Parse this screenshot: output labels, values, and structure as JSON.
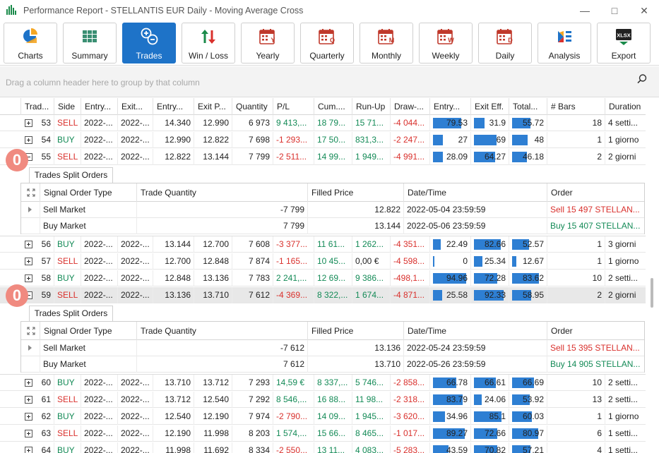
{
  "window": {
    "title": "Performance Report - STELLANTIS EUR Daily - Moving Average Cross"
  },
  "toolbar": [
    {
      "label": "Charts",
      "icon": "charts-icon"
    },
    {
      "label": "Summary",
      "icon": "summary-icon"
    },
    {
      "label": "Trades",
      "icon": "trades-icon",
      "active": true
    },
    {
      "label": "Win / Loss",
      "icon": "win-loss-icon"
    },
    {
      "label": "Yearly",
      "icon": "calendar-y-icon",
      "letter": "Y"
    },
    {
      "label": "Quarterly",
      "icon": "calendar-q-icon",
      "letter": "Q"
    },
    {
      "label": "Monthly",
      "icon": "calendar-m-icon",
      "letter": "M"
    },
    {
      "label": "Weekly",
      "icon": "calendar-w-icon",
      "letter": "W"
    },
    {
      "label": "Daily",
      "icon": "calendar-d-icon",
      "letter": "D"
    },
    {
      "label": "Analysis",
      "icon": "analysis-icon"
    },
    {
      "label": "Export",
      "icon": "xlsx-icon",
      "letter": "XLSX"
    }
  ],
  "group_panel": {
    "hint": "Drag a column header here to group by that column"
  },
  "columns": [
    "Trad...",
    "Side",
    "Entry...",
    "Exit...",
    "Entry...",
    "Exit P...",
    "Quantity",
    "P/L",
    "Cum....",
    "Run-Up",
    "Draw-...",
    "Entry...",
    "Exit Eff.",
    "Total...",
    "# Bars",
    "Duration"
  ],
  "rows_top": [
    {
      "id": "53",
      "side": "SELL",
      "entry_date": "2022-...",
      "exit_date": "2022-...",
      "entry_price": "14.340",
      "exit_price": "12.990",
      "qty": "6 973",
      "pl": "9 413,...",
      "cum": "18 79...",
      "runup": "15 71...",
      "draw": "-4 044...",
      "entry_eff": "79.53",
      "exit_eff": "31.9",
      "total_eff": "55.72",
      "bars": "18",
      "duration": "4 setti...",
      "expanded": false
    },
    {
      "id": "54",
      "side": "BUY",
      "entry_date": "2022-...",
      "exit_date": "2022-...",
      "entry_price": "12.990",
      "exit_price": "12.822",
      "qty": "7 698",
      "pl": "-1 293...",
      "cum": "17 50...",
      "runup": "831,3...",
      "draw": "-2 247...",
      "entry_eff": "27",
      "exit_eff": "69",
      "total_eff": "48",
      "bars": "1",
      "duration": "1 giorno",
      "expanded": false
    },
    {
      "id": "55",
      "side": "SELL",
      "entry_date": "2022-...",
      "exit_date": "2022-...",
      "entry_price": "12.822",
      "exit_price": "13.144",
      "qty": "7 799",
      "pl": "-2 511...",
      "cum": "14 99...",
      "runup": "1 949...",
      "draw": "-4 991...",
      "entry_eff": "28.09",
      "exit_eff": "64.27",
      "total_eff": "46.18",
      "bars": "2",
      "duration": "2 giorni",
      "expanded": true
    }
  ],
  "detail_1": {
    "tab": "Trades Split Orders",
    "columns": [
      "Signal Order Type",
      "Trade Quantity",
      "Filled Price",
      "Date/Time",
      "Order"
    ],
    "rows": [
      {
        "type": "Sell Market",
        "qty": "-7 799",
        "price": "12.822",
        "datetime": "2022-05-04 23:59:59",
        "order": "Sell 15 497 STELLAN...",
        "side": "sell"
      },
      {
        "type": "Buy Market",
        "qty": "7 799",
        "price": "13.144",
        "datetime": "2022-05-06 23:59:59",
        "order": "Buy 15 407 STELLAN...",
        "side": "buy"
      }
    ]
  },
  "rows_mid": [
    {
      "id": "56",
      "side": "BUY",
      "entry_date": "2022-...",
      "exit_date": "2022-...",
      "entry_price": "13.144",
      "exit_price": "12.700",
      "qty": "7 608",
      "pl": "-3 377...",
      "cum": "11 61...",
      "runup": "1 262...",
      "draw": "-4 351...",
      "entry_eff": "22.49",
      "exit_eff": "82.66",
      "total_eff": "52.57",
      "bars": "1",
      "duration": "3 giorni",
      "expanded": false
    },
    {
      "id": "57",
      "side": "SELL",
      "entry_date": "2022-...",
      "exit_date": "2022-...",
      "entry_price": "12.700",
      "exit_price": "12.848",
      "qty": "7 874",
      "pl": "-1 165...",
      "cum": "10 45...",
      "runup": "0,00 €",
      "draw": "-4 598...",
      "entry_eff": "0",
      "exit_eff": "25.34",
      "total_eff": "12.67",
      "bars": "1",
      "duration": "1 giorno",
      "expanded": false
    },
    {
      "id": "58",
      "side": "BUY",
      "entry_date": "2022-...",
      "exit_date": "2022-...",
      "entry_price": "12.848",
      "exit_price": "13.136",
      "qty": "7 783",
      "pl": "2 241,...",
      "cum": "12 69...",
      "runup": "9 386...",
      "draw": "-498,1...",
      "entry_eff": "94.96",
      "exit_eff": "72.28",
      "total_eff": "83.62",
      "bars": "10",
      "duration": "2 setti...",
      "expanded": false
    },
    {
      "id": "59",
      "side": "SELL",
      "entry_date": "2022-...",
      "exit_date": "2022-...",
      "entry_price": "13.136",
      "exit_price": "13.710",
      "qty": "7 612",
      "pl": "-4 369...",
      "cum": "8 322,...",
      "runup": "1 674...",
      "draw": "-4 871...",
      "entry_eff": "25.58",
      "exit_eff": "92.33",
      "total_eff": "58.95",
      "bars": "2",
      "duration": "2 giorni",
      "expanded": true,
      "selected": true
    }
  ],
  "detail_2": {
    "tab": "Trades Split Orders",
    "columns": [
      "Signal Order Type",
      "Trade Quantity",
      "Filled Price",
      "Date/Time",
      "Order"
    ],
    "rows": [
      {
        "type": "Sell Market",
        "qty": "-7 612",
        "price": "13.136",
        "datetime": "2022-05-24 23:59:59",
        "order": "Sell 15 395 STELLAN...",
        "side": "sell"
      },
      {
        "type": "Buy Market",
        "qty": "7 612",
        "price": "13.710",
        "datetime": "2022-05-26 23:59:59",
        "order": "Buy 14 905 STELLAN...",
        "side": "buy"
      }
    ]
  },
  "rows_bottom": [
    {
      "id": "60",
      "side": "BUY",
      "entry_date": "2022-...",
      "exit_date": "2022-...",
      "entry_price": "13.710",
      "exit_price": "13.712",
      "qty": "7 293",
      "pl": "14,59 €",
      "cum": "8 337,...",
      "runup": "5 746...",
      "draw": "-2 858...",
      "entry_eff": "66.78",
      "exit_eff": "66.61",
      "total_eff": "66.69",
      "bars": "10",
      "duration": "2 setti...",
      "expanded": false
    },
    {
      "id": "61",
      "side": "SELL",
      "entry_date": "2022-...",
      "exit_date": "2022-...",
      "entry_price": "13.712",
      "exit_price": "12.540",
      "qty": "7 292",
      "pl": "8 546,...",
      "cum": "16 88...",
      "runup": "11 98...",
      "draw": "-2 318...",
      "entry_eff": "83.79",
      "exit_eff": "24.06",
      "total_eff": "53.92",
      "bars": "13",
      "duration": "2 setti...",
      "expanded": false
    },
    {
      "id": "62",
      "side": "BUY",
      "entry_date": "2022-...",
      "exit_date": "2022-...",
      "entry_price": "12.540",
      "exit_price": "12.190",
      "qty": "7 974",
      "pl": "-2 790...",
      "cum": "14 09...",
      "runup": "1 945...",
      "draw": "-3 620...",
      "entry_eff": "34.96",
      "exit_eff": "85.1",
      "total_eff": "60.03",
      "bars": "1",
      "duration": "1 giorno",
      "expanded": false
    },
    {
      "id": "63",
      "side": "SELL",
      "entry_date": "2022-...",
      "exit_date": "2022-...",
      "entry_price": "12.190",
      "exit_price": "11.998",
      "qty": "8 203",
      "pl": "1 574,...",
      "cum": "15 66...",
      "runup": "8 465...",
      "draw": "-1 017...",
      "entry_eff": "89.27",
      "exit_eff": "72.66",
      "total_eff": "80.97",
      "bars": "6",
      "duration": "1 setti...",
      "expanded": false
    },
    {
      "id": "64",
      "side": "BUY",
      "entry_date": "2022-...",
      "exit_date": "2022-...",
      "entry_price": "11.998",
      "exit_price": "11.692",
      "qty": "8 334",
      "pl": "-2 550...",
      "cum": "13 11...",
      "runup": "4 083...",
      "draw": "-5 283...",
      "entry_eff": "43.59",
      "exit_eff": "70.82",
      "total_eff": "57.21",
      "bars": "4",
      "duration": "1 setti...",
      "expanded": false
    }
  ],
  "badges": [
    "0",
    "0"
  ],
  "colors": {
    "buy": "#138a56",
    "sell": "#d9302c",
    "accent": "#1e73c8",
    "bar": "#2e7fd3"
  }
}
